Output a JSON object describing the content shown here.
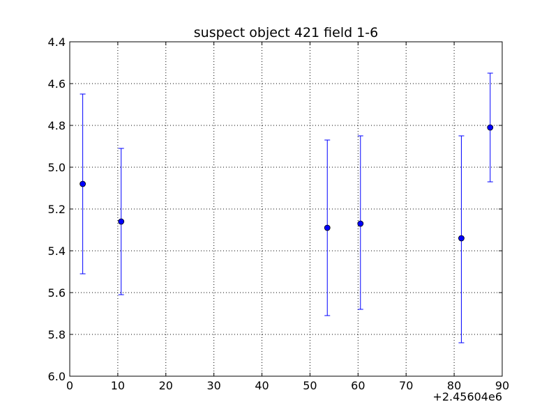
{
  "chart_data": {
    "type": "scatter",
    "title": "suspect object 421 field 1-6",
    "xlabel": "",
    "ylabel": "",
    "x_offset_label": "+2.45604e6",
    "xlim": [
      0,
      90
    ],
    "ylim": [
      4.4,
      6.0
    ],
    "y_inverted": true,
    "grid": true,
    "x_ticks": [
      "0",
      "10",
      "20",
      "30",
      "40",
      "50",
      "60",
      "70",
      "80",
      "90"
    ],
    "y_ticks": [
      "4.4",
      "4.6",
      "4.8",
      "5.0",
      "5.2",
      "5.4",
      "5.6",
      "5.8",
      "6.0"
    ],
    "marker_color": "#0000ff",
    "series": [
      {
        "points": [
          {
            "x": 2.7,
            "y": 5.08,
            "err_low": 4.65,
            "err_high": 5.51
          },
          {
            "x": 10.7,
            "y": 5.26,
            "err_low": 4.91,
            "err_high": 5.61
          },
          {
            "x": 53.6,
            "y": 5.29,
            "err_low": 4.87,
            "err_high": 5.71
          },
          {
            "x": 60.5,
            "y": 5.27,
            "err_low": 4.85,
            "err_high": 5.68
          },
          {
            "x": 81.5,
            "y": 5.34,
            "err_low": 4.85,
            "err_high": 5.84
          },
          {
            "x": 87.5,
            "y": 4.81,
            "err_low": 4.55,
            "err_high": 5.07
          }
        ]
      }
    ]
  }
}
